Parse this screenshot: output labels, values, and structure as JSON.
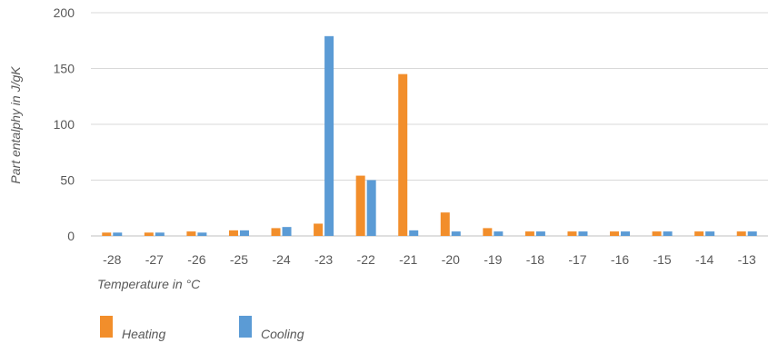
{
  "chart_data": {
    "type": "bar",
    "xlabel": "Temperature in °C",
    "ylabel": "Part entalphy in J/gK",
    "ylim": [
      0,
      200
    ],
    "yticks": [
      0,
      50,
      100,
      150,
      200
    ],
    "grid": true,
    "legend_position": "bottom-left",
    "categories": [
      "-28",
      "-27",
      "-26",
      "-25",
      "-24",
      "-23",
      "-22",
      "-21",
      "-20",
      "-19",
      "-18",
      "-17",
      "-16",
      "-15",
      "-14",
      "-13"
    ],
    "series": [
      {
        "name": "Heating",
        "color": "#F28E2B",
        "values": [
          3,
          3,
          4,
          5,
          7,
          11,
          54,
          145,
          21,
          7,
          4,
          4,
          4,
          4,
          4,
          4
        ]
      },
      {
        "name": "Cooling",
        "color": "#5B9BD5",
        "values": [
          3,
          3,
          3,
          5,
          8,
          179,
          50,
          5,
          4,
          4,
          4,
          4,
          4,
          4,
          4,
          4
        ]
      }
    ]
  }
}
